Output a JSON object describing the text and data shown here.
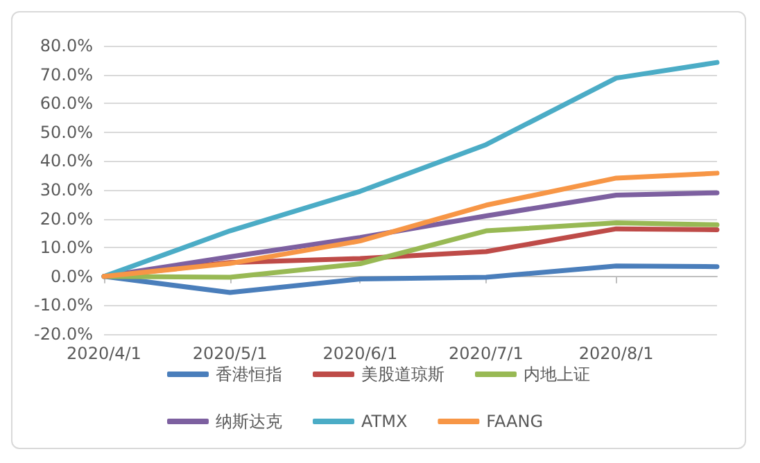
{
  "chart_data": {
    "type": "line",
    "x": [
      "2020-04-01",
      "2020-05-01",
      "2020-06-01",
      "2020-07-01",
      "2020-08-01",
      "2020-08-25"
    ],
    "xlim": [
      "2020-04-01",
      "2020-08-25"
    ],
    "xticks": [
      {
        "value": "2020-04-01",
        "label": "2020/4/1"
      },
      {
        "value": "2020-05-01",
        "label": "2020/5/1"
      },
      {
        "value": "2020-06-01",
        "label": "2020/6/1"
      },
      {
        "value": "2020-07-01",
        "label": "2020/7/1"
      },
      {
        "value": "2020-08-01",
        "label": "2020/8/1"
      }
    ],
    "ylim": [
      -20,
      80
    ],
    "yticks": [
      {
        "value": -20,
        "label": "-20.0%"
      },
      {
        "value": -10,
        "label": "-10.0%"
      },
      {
        "value": 0,
        "label": "0.0%"
      },
      {
        "value": 10,
        "label": "10.0%"
      },
      {
        "value": 20,
        "label": "20.0%"
      },
      {
        "value": 30,
        "label": "30.0%"
      },
      {
        "value": 40,
        "label": "40.0%"
      },
      {
        "value": 50,
        "label": "50.0%"
      },
      {
        "value": 60,
        "label": "60.0%"
      },
      {
        "value": 70,
        "label": "70.0%"
      },
      {
        "value": 80,
        "label": "80.0%"
      }
    ],
    "grid": "y",
    "legend": "bottom",
    "marker": "none",
    "line_style": "solid",
    "series": [
      {
        "name": "香港恒指",
        "color": "#4a7ebb",
        "values": [
          0,
          -5.6,
          -0.9,
          -0.3,
          3.6,
          3.4
        ]
      },
      {
        "name": "美股道琼斯",
        "color": "#be4b48",
        "values": [
          0,
          4.8,
          6.2,
          8.6,
          16.5,
          16.2
        ]
      },
      {
        "name": "内地上证",
        "color": "#98b954",
        "values": [
          0,
          -0.3,
          4.4,
          15.8,
          18.6,
          17.9
        ]
      },
      {
        "name": "纳斯达克",
        "color": "#7d60a0",
        "values": [
          0,
          6.8,
          13.5,
          21.0,
          28.2,
          29.0
        ]
      },
      {
        "name": "ATMX",
        "color": "#4bacc6",
        "values": [
          0,
          15.8,
          29.5,
          45.7,
          68.8,
          74.2
        ]
      },
      {
        "name": "FAANG",
        "color": "#f79646",
        "values": [
          0,
          4.5,
          12.3,
          24.7,
          34.1,
          35.8
        ]
      }
    ]
  }
}
